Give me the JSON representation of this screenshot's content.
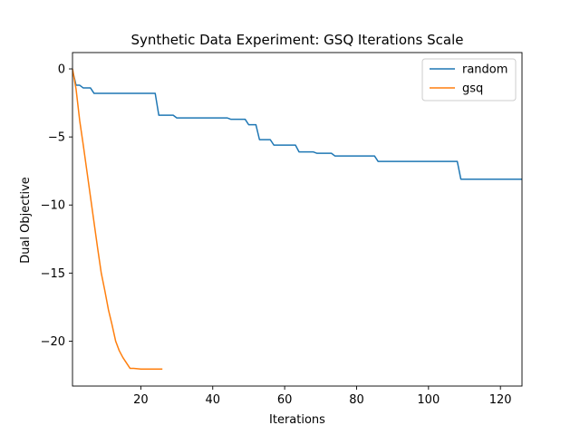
{
  "chart_data": {
    "type": "line",
    "title": "Synthetic Data Experiment: GSQ Iterations Scale",
    "xlabel": "Iterations",
    "ylabel": "Dual Objective",
    "xlim": [
      1,
      126
    ],
    "ylim": [
      -23.3,
      1.2
    ],
    "xticks": [
      20,
      40,
      60,
      80,
      100,
      120
    ],
    "yticks": [
      0,
      -5,
      -10,
      -15,
      -20
    ],
    "ytick_labels": [
      "0",
      "−5",
      "−10",
      "−15",
      "−20"
    ],
    "grid": false,
    "legend_position": "top-right",
    "series": [
      {
        "name": "random",
        "color": "#1f77b4",
        "points": [
          [
            1,
            -0.1
          ],
          [
            2,
            -1.2
          ],
          [
            3,
            -1.2
          ],
          [
            4,
            -1.4
          ],
          [
            6,
            -1.4
          ],
          [
            7,
            -1.8
          ],
          [
            24,
            -1.8
          ],
          [
            25,
            -3.4
          ],
          [
            29,
            -3.4
          ],
          [
            30,
            -3.6
          ],
          [
            44,
            -3.6
          ],
          [
            45,
            -3.7
          ],
          [
            49,
            -3.7
          ],
          [
            50,
            -4.1
          ],
          [
            52,
            -4.1
          ],
          [
            53,
            -5.2
          ],
          [
            56,
            -5.2
          ],
          [
            57,
            -5.6
          ],
          [
            63,
            -5.6
          ],
          [
            64,
            -6.1
          ],
          [
            68,
            -6.1
          ],
          [
            69,
            -6.2
          ],
          [
            73,
            -6.2
          ],
          [
            74,
            -6.4
          ],
          [
            85,
            -6.4
          ],
          [
            86,
            -6.8
          ],
          [
            108,
            -6.8
          ],
          [
            109,
            -8.1
          ],
          [
            126,
            -8.1
          ]
        ]
      },
      {
        "name": "gsq",
        "color": "#ff7f0e",
        "points": [
          [
            1,
            0.0
          ],
          [
            2,
            -1.5
          ],
          [
            3,
            -3.8
          ],
          [
            4,
            -5.6
          ],
          [
            5,
            -7.5
          ],
          [
            6,
            -9.4
          ],
          [
            7,
            -11.3
          ],
          [
            8,
            -13.2
          ],
          [
            9,
            -15.0
          ],
          [
            10,
            -16.3
          ],
          [
            11,
            -17.7
          ],
          [
            12,
            -18.8
          ],
          [
            13,
            -20.0
          ],
          [
            14,
            -20.7
          ],
          [
            15,
            -21.2
          ],
          [
            16,
            -21.6
          ],
          [
            17,
            -22.0
          ],
          [
            18,
            -22.0
          ],
          [
            20,
            -22.05
          ],
          [
            26,
            -22.05
          ]
        ]
      }
    ]
  }
}
